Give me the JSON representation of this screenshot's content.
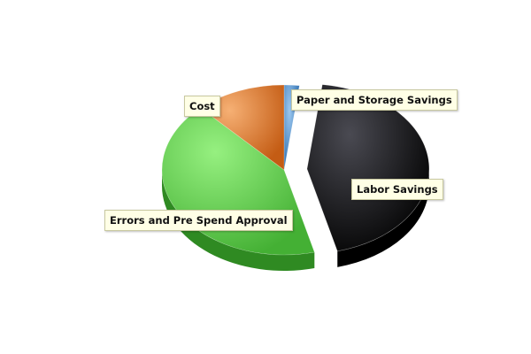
{
  "chart_data": {
    "type": "pie",
    "style": "3d-exploded",
    "title": "",
    "categories": [
      "Paper and Storage Savings",
      "Labor Savings",
      "Errors and Pre Spend Approval",
      "Cost"
    ],
    "values": [
      2,
      44,
      42,
      12
    ],
    "colors": [
      "#4a86c8",
      "#1e1e22",
      "#5cc24a",
      "#d8762c"
    ],
    "exploded": [
      "Labor Savings"
    ],
    "legend": "none"
  }
}
